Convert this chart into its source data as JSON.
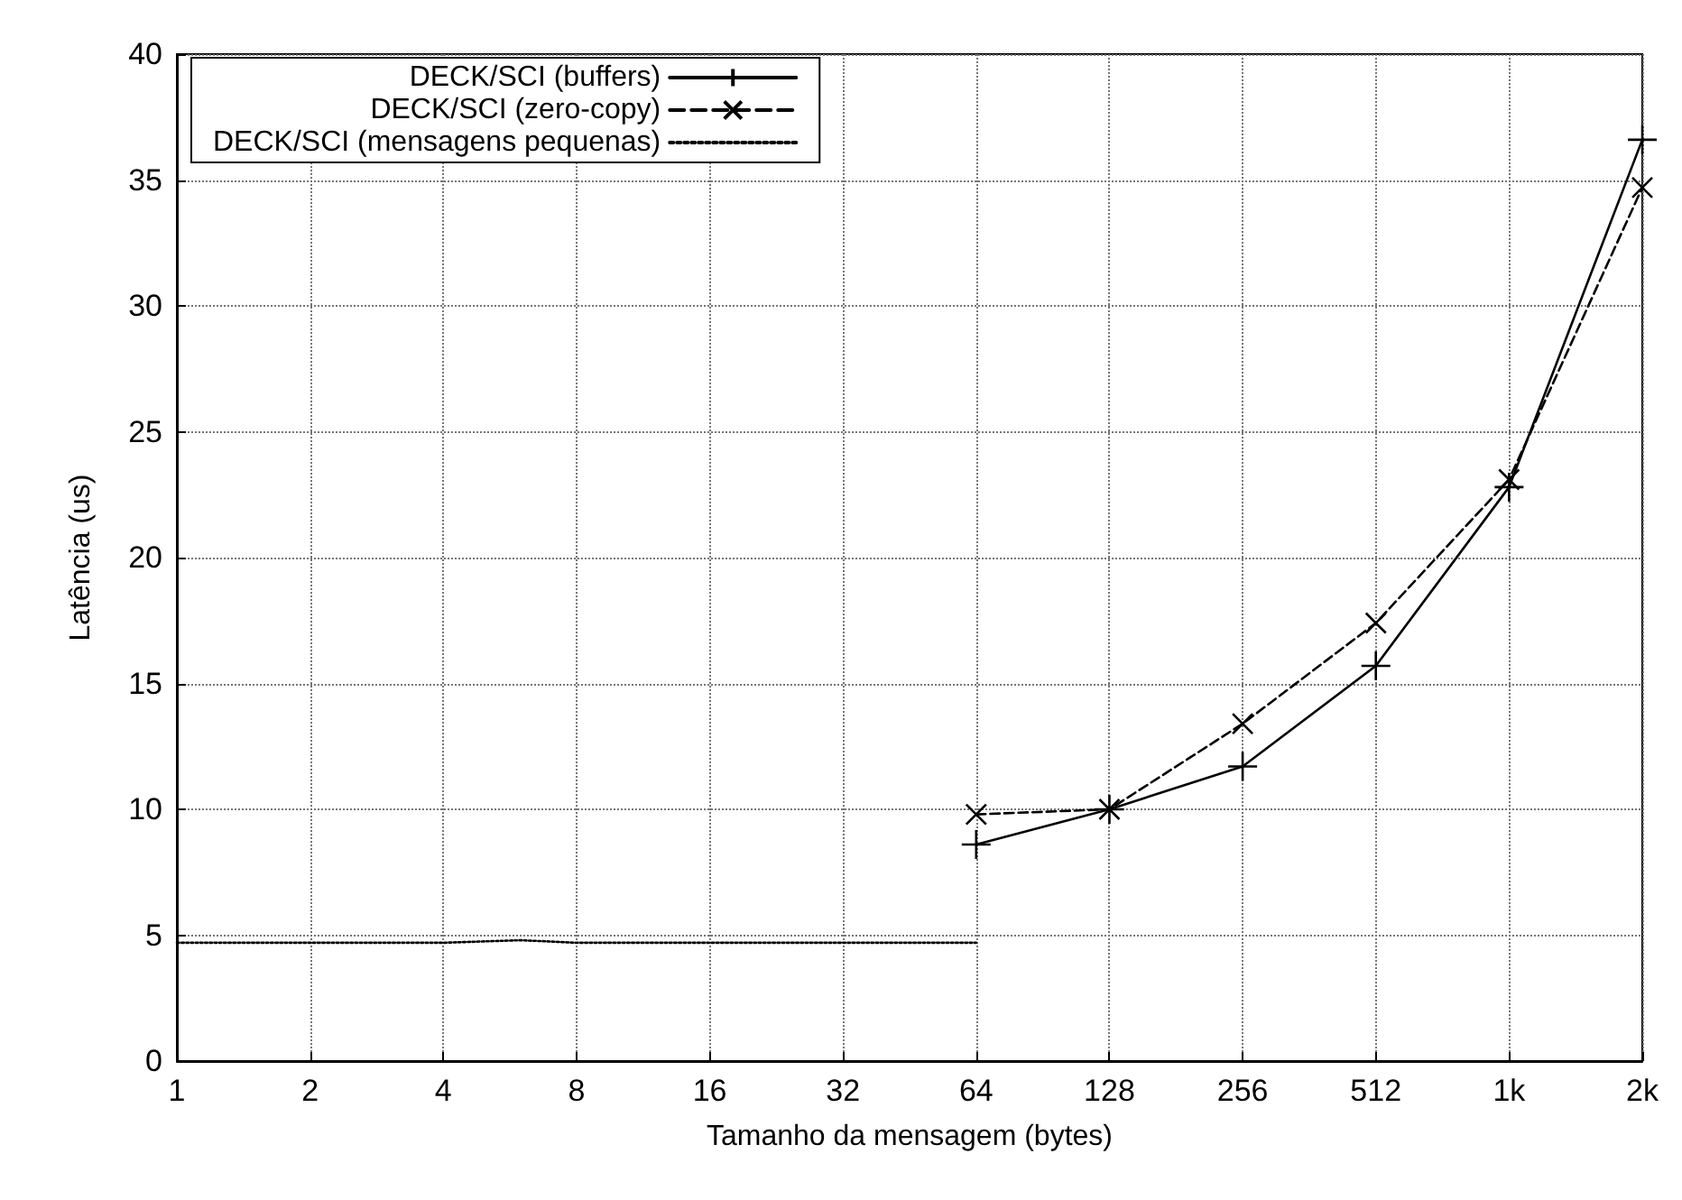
{
  "chart_data": {
    "type": "line",
    "xlabel": "Tamanho da mensagem (bytes)",
    "ylabel": "Latência (us)",
    "log": "x",
    "xlim": [
      1,
      2048
    ],
    "xticks": [
      1,
      2,
      4,
      8,
      16,
      32,
      64,
      128,
      256,
      512,
      {
        "value": 1024,
        "label": "1k"
      },
      {
        "value": 2048,
        "label": "2k"
      }
    ],
    "ylim": [
      0,
      40
    ],
    "yticks": [
      0,
      5,
      10,
      15,
      20,
      25,
      30,
      35,
      40
    ],
    "grid": true,
    "legend": "top left",
    "series": [
      {
        "name": "DECK/SCI (buffers)",
        "color": "#000000",
        "marker": "cross",
        "line_style": "solid",
        "x": [
          64,
          128,
          256,
          512,
          1024,
          2048
        ],
        "values": [
          8.6,
          10.0,
          11.7,
          15.7,
          22.8,
          36.6
        ]
      },
      {
        "name": "DECK/SCI (zero-copy)",
        "color": "#000000",
        "marker": "x",
        "line_style": "dashed",
        "x": [
          64,
          128,
          256,
          512,
          1024,
          2048
        ],
        "values": [
          9.8,
          10.0,
          13.4,
          17.4,
          23.1,
          34.7
        ]
      },
      {
        "name": "DECK/SCI (mensagens pequenas)",
        "color": "#000000",
        "marker": "none",
        "line_style": "dotted",
        "x": [
          1,
          2,
          4,
          6,
          8,
          16,
          32,
          64
        ],
        "values": [
          4.7,
          4.7,
          4.7,
          4.8,
          4.7,
          4.7,
          4.7,
          4.7
        ]
      }
    ]
  }
}
